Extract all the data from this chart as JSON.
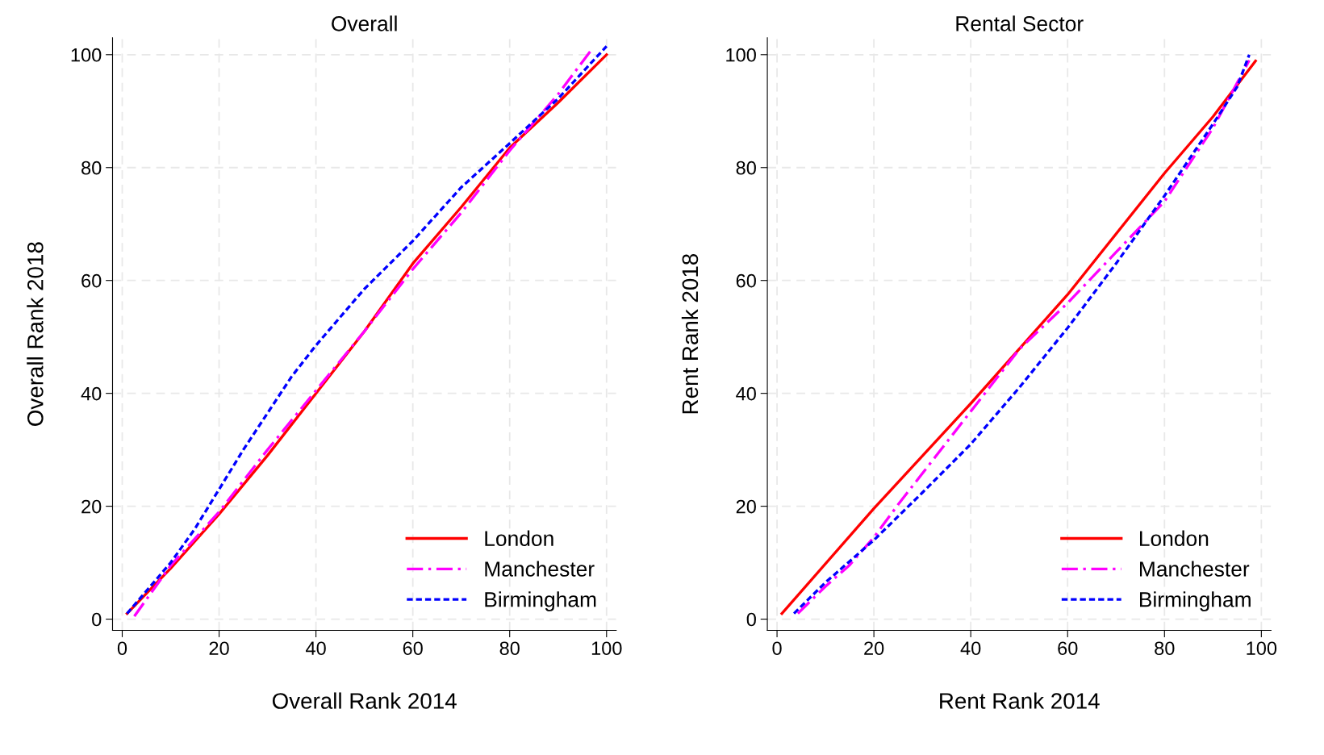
{
  "chart_data": [
    {
      "type": "line",
      "title": "Overall",
      "xlabel": "Overall Rank 2014",
      "ylabel": "Overall Rank 2018",
      "xlim": [
        -2,
        102
      ],
      "ylim": [
        -2,
        103
      ],
      "xticks": [
        0,
        20,
        40,
        60,
        80,
        100
      ],
      "yticks": [
        0,
        20,
        40,
        60,
        80,
        100
      ],
      "grid": true,
      "legend": "bottom right",
      "series": [
        {
          "name": "London",
          "color": "#ff0000",
          "line_style": "solid",
          "x": [
            1,
            10,
            20,
            30,
            40,
            50,
            60,
            70,
            80,
            90,
            100
          ],
          "values": [
            1,
            9,
            18.6,
            29,
            40,
            51,
            63,
            73,
            83.5,
            91.5,
            100
          ]
        },
        {
          "name": "Manchester",
          "color": "#ff00ff",
          "line_style": "dashdot",
          "x": [
            2.5,
            10,
            20,
            30,
            40,
            50,
            60,
            70,
            80,
            90,
            97
          ],
          "values": [
            0.5,
            9.5,
            19,
            30,
            40.5,
            51,
            62,
            72,
            83,
            93,
            101
          ]
        },
        {
          "name": "Birmingham",
          "color": "#0000ff",
          "line_style": "dashed",
          "x": [
            1,
            10,
            15,
            20,
            25,
            30,
            35,
            40,
            50,
            60,
            70,
            80,
            90,
            100
          ],
          "values": [
            1,
            10,
            16,
            23,
            30,
            36.5,
            43,
            48.5,
            58.5,
            67,
            76.5,
            84.3,
            92.2,
            101.5
          ]
        }
      ]
    },
    {
      "type": "line",
      "title": "Rental Sector",
      "xlabel": "Rent Rank 2014",
      "ylabel": "Rent Rank 2018",
      "xlim": [
        -2,
        102
      ],
      "ylim": [
        -2,
        103
      ],
      "xticks": [
        0,
        20,
        40,
        60,
        80,
        100
      ],
      "yticks": [
        0,
        20,
        40,
        60,
        80,
        100
      ],
      "grid": true,
      "legend": "bottom right",
      "series": [
        {
          "name": "London",
          "color": "#ff0000",
          "line_style": "solid",
          "x": [
            1,
            20,
            40,
            60,
            80,
            90,
            98.8
          ],
          "values": [
            1,
            19.6,
            38.2,
            57.5,
            79,
            89,
            98.9
          ]
        },
        {
          "name": "Manchester",
          "color": "#ff00ff",
          "line_style": "dashdot",
          "x": [
            4.3,
            10,
            15,
            20,
            25,
            30,
            40,
            50,
            60,
            70,
            80,
            90,
            95,
            97.5
          ],
          "values": [
            1,
            5.8,
            9.6,
            14.5,
            20.3,
            25.8,
            36.8,
            47.8,
            56,
            65,
            74,
            87,
            95,
            99
          ]
        },
        {
          "name": "Birmingham",
          "color": "#0000ff",
          "line_style": "dashed",
          "x": [
            3.5,
            10,
            20,
            30,
            40,
            50,
            60,
            70,
            80,
            90,
            95,
            97.5
          ],
          "values": [
            1,
            6.5,
            14,
            22.4,
            31,
            41,
            51.6,
            63,
            75,
            87.7,
            94.3,
            100
          ]
        }
      ]
    }
  ]
}
